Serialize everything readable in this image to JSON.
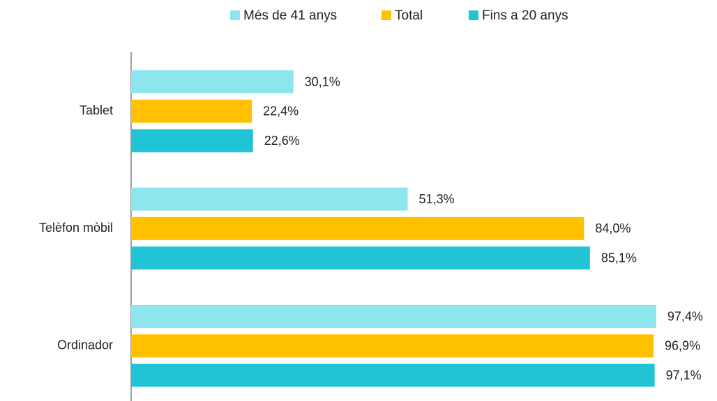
{
  "chart_data": {
    "type": "bar",
    "orientation": "horizontal",
    "categories": [
      "Tablet",
      "Telèfon mòbil",
      "Ordinador"
    ],
    "series": [
      {
        "name": "Més de 41 anys",
        "color": "#8de5ed",
        "values": [
          30.1,
          51.3,
          97.4
        ],
        "value_labels": [
          "30,1%",
          "51,3%",
          "97,4%"
        ]
      },
      {
        "name": "Total",
        "color": "#ffc000",
        "values": [
          22.4,
          84.0,
          96.9
        ],
        "value_labels": [
          "22,4%",
          "84,0%",
          "96,9%"
        ]
      },
      {
        "name": "Fins a 20 anys",
        "color": "#20c4d4",
        "values": [
          22.6,
          85.1,
          97.1
        ],
        "value_labels": [
          "22,6%",
          "85,1%",
          "97,1%"
        ]
      }
    ],
    "xlim": [
      0,
      100
    ],
    "legend": "top"
  }
}
